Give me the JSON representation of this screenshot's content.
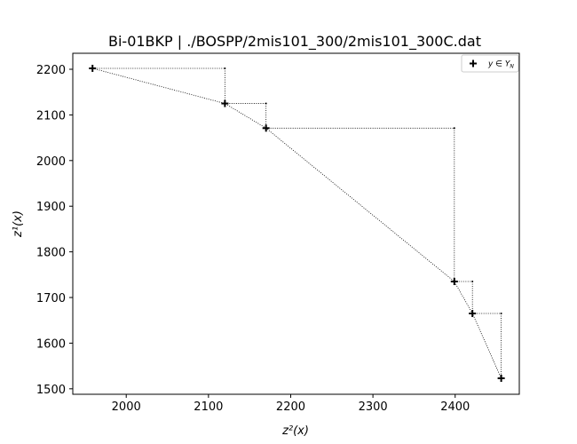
{
  "chart_data": {
    "type": "scatter",
    "title": "Bi-01BKP | ./BOSPP/2mis101_300/2mis101_300C.dat",
    "xlabel": "z²(x)",
    "ylabel": "z¹(x)",
    "xlim": [
      1935,
      2478
    ],
    "ylim": [
      1488,
      2235
    ],
    "x_ticks": [
      2000,
      2100,
      2200,
      2300,
      2400
    ],
    "y_ticks": [
      1500,
      1600,
      1700,
      1800,
      1900,
      2000,
      2100,
      2200
    ],
    "series": [
      {
        "name": "y ∈ Y_N",
        "points": [
          {
            "x": 1959,
            "y": 2202
          },
          {
            "x": 2120,
            "y": 2125
          },
          {
            "x": 2170,
            "y": 2071
          },
          {
            "x": 2399,
            "y": 1735
          },
          {
            "x": 2421,
            "y": 1665
          },
          {
            "x": 2456,
            "y": 1523
          }
        ]
      }
    ],
    "legend": {
      "label": "y ∈ Y",
      "subscript": "N",
      "position": "top-right"
    },
    "grid": false
  }
}
